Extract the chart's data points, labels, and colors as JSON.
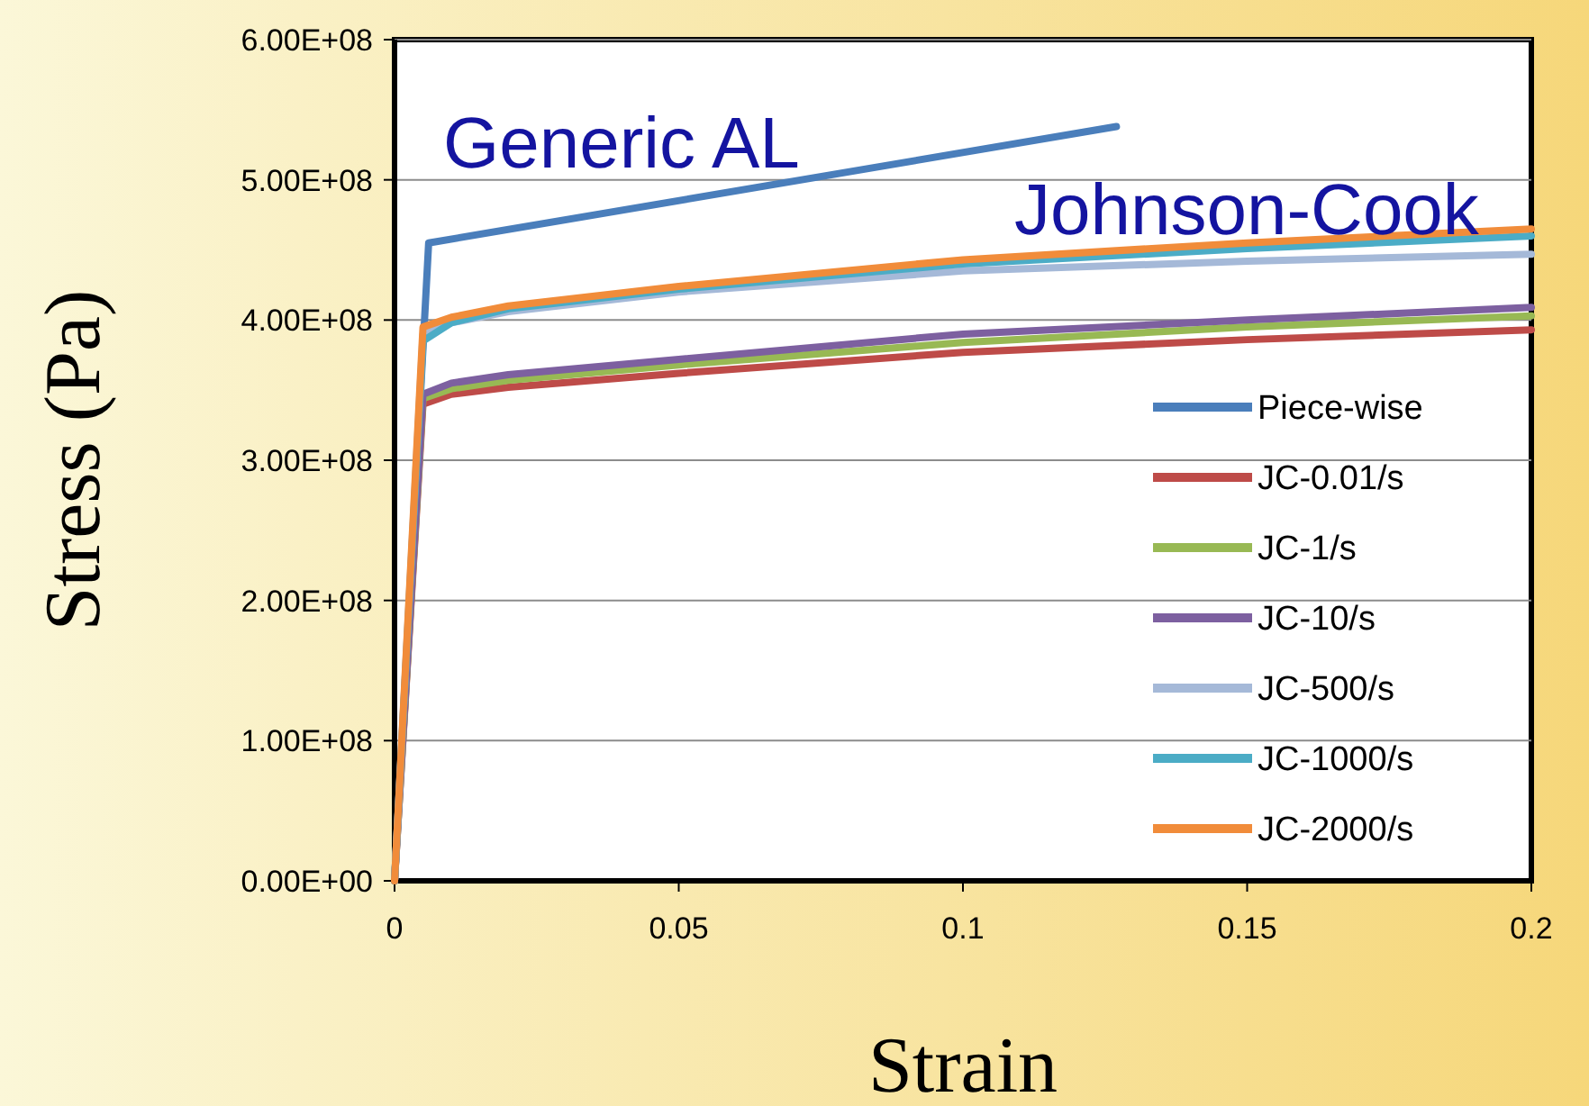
{
  "chart_data": {
    "type": "line",
    "xlabel": "Strain",
    "ylabel": "Stress (Pa)",
    "xlim": [
      0,
      0.2
    ],
    "xticks": [
      0,
      0.05,
      0.1,
      0.15,
      0.2
    ],
    "ylim": [
      0,
      600000000
    ],
    "yticks": [
      {
        "value": 0,
        "label": "0.00E+00"
      },
      {
        "value": 100000000,
        "label": "1.00E+08"
      },
      {
        "value": 200000000,
        "label": "2.00E+08"
      },
      {
        "value": 300000000,
        "label": "3.00E+08"
      },
      {
        "value": 400000000,
        "label": "4.00E+08"
      },
      {
        "value": 500000000,
        "label": "5.00E+08"
      },
      {
        "value": 600000000,
        "label": "6.00E+08"
      }
    ],
    "grid": "y",
    "legend": "bottom right",
    "marker": "none",
    "line_style": "solid",
    "series": [
      {
        "name": "Piece-wise",
        "color": "#4a7ebb",
        "x": [
          0,
          0.006,
          0.127
        ],
        "values": [
          0,
          455000000,
          538000000
        ]
      },
      {
        "name": "JC-0.01/s",
        "color": "#be4b48",
        "x": [
          0,
          0.005,
          0.01,
          0.02,
          0.05,
          0.1,
          0.15,
          0.2
        ],
        "values": [
          0,
          340000000,
          347000000,
          352000000,
          362000000,
          377000000,
          386000000,
          393000000
        ]
      },
      {
        "name": "JC-1/s",
        "color": "#98b954",
        "x": [
          0,
          0.005,
          0.01,
          0.02,
          0.05,
          0.1,
          0.15,
          0.2
        ],
        "values": [
          0,
          344000000,
          351000000,
          357000000,
          368000000,
          384000000,
          395000000,
          403000000
        ]
      },
      {
        "name": "JC-10/s",
        "color": "#7d60a0",
        "x": [
          0,
          0.005,
          0.01,
          0.02,
          0.05,
          0.1,
          0.15,
          0.2
        ],
        "values": [
          0,
          347000000,
          355000000,
          361000000,
          372000000,
          390000000,
          400000000,
          409000000
        ]
      },
      {
        "name": "JC-500/s",
        "color": "#a5b9d8",
        "x": [
          0,
          0.005,
          0.01,
          0.02,
          0.05,
          0.1,
          0.15,
          0.2
        ],
        "values": [
          0,
          390000000,
          398000000,
          406000000,
          420000000,
          435000000,
          442000000,
          447000000
        ]
      },
      {
        "name": "JC-1000/s",
        "color": "#4bacc6",
        "x": [
          0,
          0.005,
          0.01,
          0.02,
          0.05,
          0.1,
          0.15,
          0.2
        ],
        "values": [
          0,
          385000000,
          398000000,
          408000000,
          422000000,
          440000000,
          451000000,
          460000000
        ]
      },
      {
        "name": "JC-2000/s",
        "color": "#f18c3a",
        "x": [
          0,
          0.005,
          0.01,
          0.02,
          0.05,
          0.1,
          0.15,
          0.2
        ],
        "values": [
          0,
          395000000,
          402000000,
          410000000,
          424000000,
          443000000,
          455000000,
          465000000
        ]
      }
    ],
    "annotations": [
      "Generic AL",
      "Johnson-Cook"
    ]
  }
}
